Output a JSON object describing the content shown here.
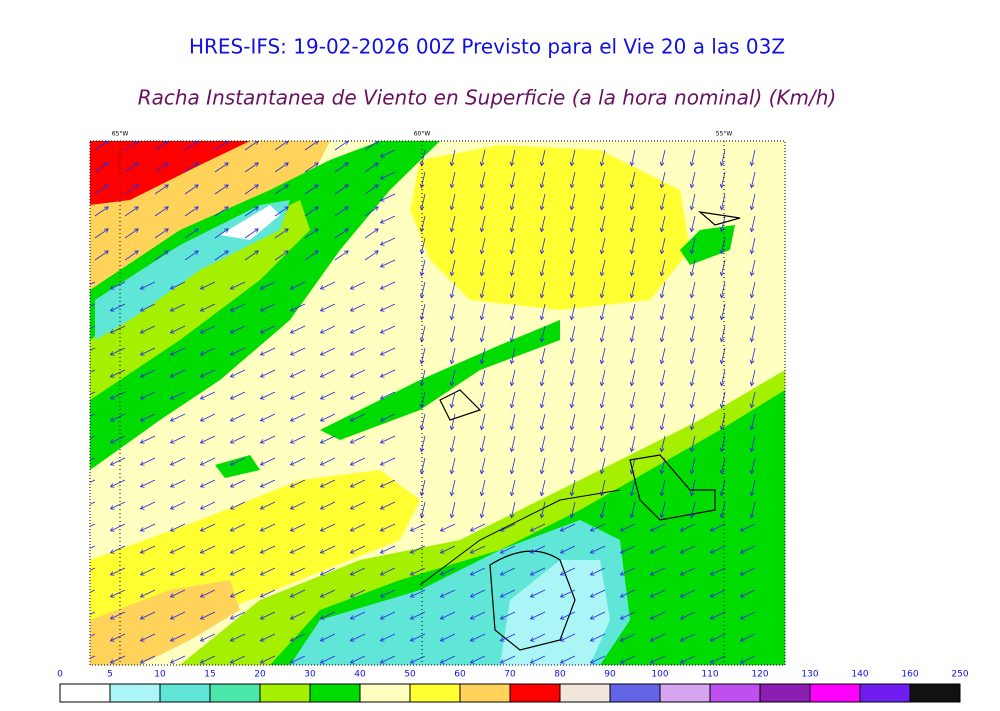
{
  "header": {
    "title": "HRES-IFS: 19-02-2026 00Z Previsto para el Vie 20 a las 03Z",
    "subtitle": "Racha Instantanea de Viento en Superficie (a la hora nominal) (Km/h)"
  },
  "map": {
    "longitude_labels": [
      "65°W",
      "60°W",
      "55°W"
    ]
  },
  "colorbar": {
    "ticks": [
      0,
      5,
      10,
      15,
      20,
      30,
      40,
      50,
      60,
      70,
      80,
      90,
      100,
      110,
      120,
      130,
      140,
      160,
      250
    ],
    "colors": [
      "#ffffff",
      "#aaf5f5",
      "#5fe6d6",
      "#4be6aa",
      "#a5f000",
      "#00dc00",
      "#ffffc0",
      "#ffff32",
      "#ffd25a",
      "#ff0000",
      "#f2e6dc",
      "#6464e6",
      "#d7a5f0",
      "#be50f0",
      "#8c1eb4",
      "#ff00ff",
      "#6e1ef0",
      "#111111"
    ]
  }
}
